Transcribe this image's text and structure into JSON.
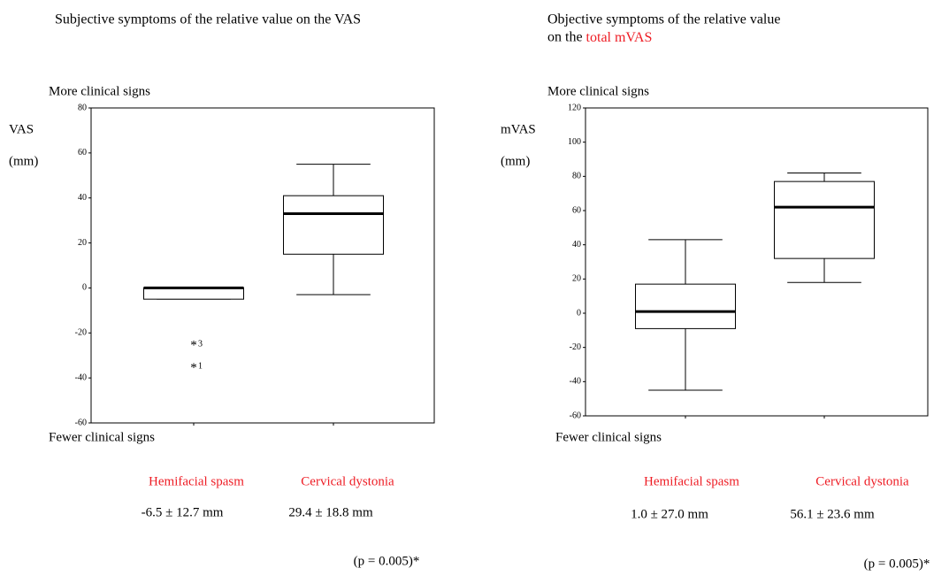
{
  "chart_data": [
    {
      "type": "box",
      "title": [
        "Subjective symptoms of the relative value on the VAS"
      ],
      "ylabel": [
        "VAS",
        "(mm)"
      ],
      "top_label": "More clinical signs",
      "bottom_label": "Fewer clinical signs",
      "ylim": [
        -60,
        80
      ],
      "yticks": [
        -60,
        -40,
        -20,
        0,
        20,
        40,
        60,
        80
      ],
      "categories": [
        "Hemifacial spasm",
        "Cervical dystonia"
      ],
      "category_color": "#ee1c24",
      "boxes": [
        {
          "whisker_low": -5,
          "q1": -5,
          "median": 0,
          "q3": 0,
          "whisker_high": 0,
          "outliers": [
            {
              "value": -25,
              "label": "3"
            },
            {
              "value": -35,
              "label": "1"
            }
          ]
        },
        {
          "whisker_low": -3,
          "q1": 15,
          "median": 33,
          "q3": 41,
          "whisker_high": 55,
          "outliers": []
        }
      ],
      "summary": [
        "-6.5 ± 12.7 mm",
        "29.4 ± 18.8 mm"
      ],
      "p_value": "(p = 0.005)*"
    },
    {
      "type": "box",
      "title": [
        "Objective symptoms of the relative value",
        "on the "
      ],
      "title_highlight": "total mVAS",
      "ylabel": [
        "mVAS",
        "(mm)"
      ],
      "top_label": "More clinical signs",
      "bottom_label": "Fewer clinical signs",
      "ylim": [
        -60,
        120
      ],
      "yticks": [
        -60,
        -40,
        -20,
        0,
        20,
        40,
        60,
        80,
        100,
        120
      ],
      "categories": [
        "Hemifacial spasm",
        "Cervical dystonia"
      ],
      "category_color": "#ee1c24",
      "boxes": [
        {
          "whisker_low": -45,
          "q1": -9,
          "median": 1,
          "q3": 17,
          "whisker_high": 43,
          "outliers": []
        },
        {
          "whisker_low": 18,
          "q1": 32,
          "median": 62,
          "q3": 77,
          "whisker_high": 82,
          "outliers": []
        }
      ],
      "summary": [
        "1.0 ± 27.0 mm",
        "56.1 ± 23.6 mm"
      ],
      "p_value": "(p = 0.005)*"
    }
  ]
}
